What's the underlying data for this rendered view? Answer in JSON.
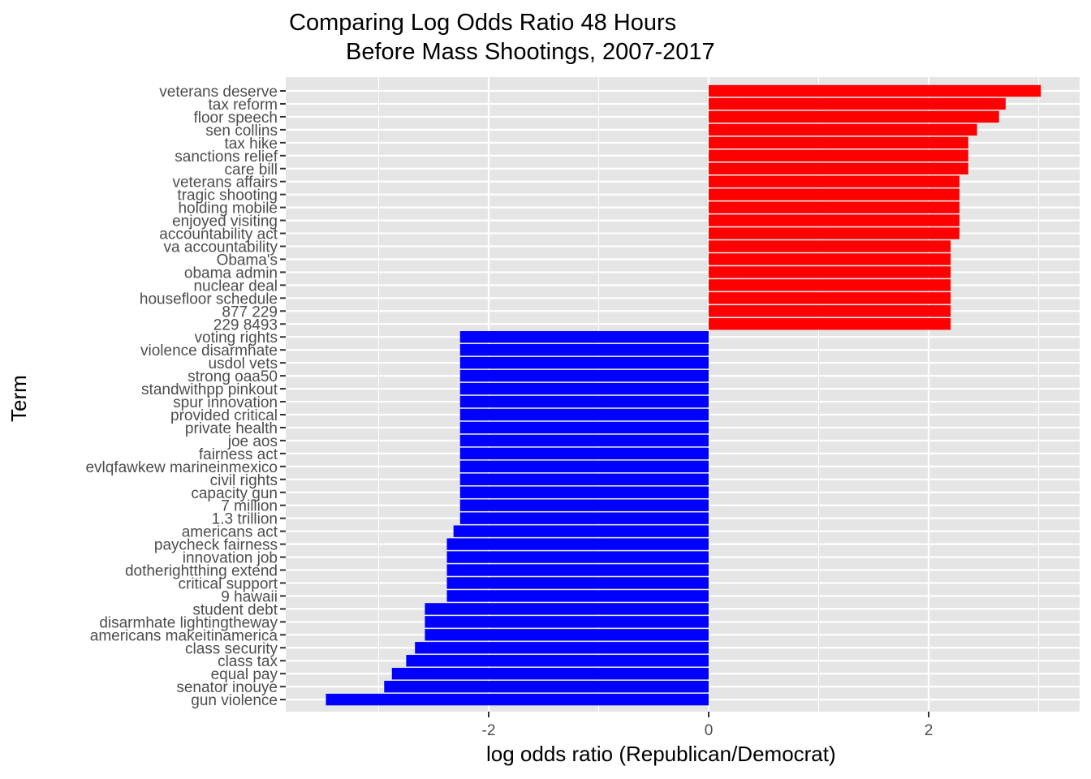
{
  "chart_data": {
    "type": "bar",
    "orientation": "horizontal",
    "title_lines": [
      "Comparing Log Odds Ratio 48 Hours",
      "Before Mass Shootings, 2007-2017"
    ],
    "xlabel": "log odds ratio (Republican/Democrat)",
    "ylabel": "Term",
    "xlim": [
      -3.5,
      3.3
    ],
    "xticks": [
      -2,
      0,
      2
    ],
    "xtick_labels": [
      "-2",
      "0",
      "2"
    ],
    "grid": true,
    "colors": {
      "positive": "#ff0000",
      "negative": "#0000ff",
      "panel": "#e5e5e5",
      "grid": "#ffffff"
    },
    "categories": [
      "veterans deserve",
      "tax reform",
      "floor speech",
      "sen collins",
      "tax hike",
      "sanctions relief",
      "care bill",
      "veterans affairs",
      "tragic shooting",
      "holding mobile",
      "enjoyed visiting",
      "accountability act",
      "va accountability",
      "Obama's",
      "obama admin",
      "nuclear deal",
      "housefloor schedule",
      "877 229",
      "229 8493",
      "voting rights",
      "violence disarmhate",
      "usdol vets",
      "strong oaa50",
      "standwithpp pinkout",
      "spur innovation",
      "provided critical",
      "private health",
      "joe aos",
      "fairness act",
      "evlqfawkew marineinmexico",
      "civil rights",
      "capacity gun",
      "7 million",
      "1.3 trillion",
      "americans act",
      "paycheck fairness",
      "innovation job",
      "dotherightthing extend",
      "critical support",
      "9 hawaii",
      "student debt",
      "disarmhate lightingtheway",
      "americans makeitinamerica",
      "class security",
      "class tax",
      "equal pay",
      "senator inouye",
      "gun violence"
    ],
    "values": [
      3.02,
      2.7,
      2.64,
      2.44,
      2.36,
      2.36,
      2.36,
      2.28,
      2.28,
      2.28,
      2.28,
      2.28,
      2.2,
      2.2,
      2.2,
      2.2,
      2.2,
      2.2,
      2.2,
      -2.26,
      -2.26,
      -2.26,
      -2.26,
      -2.26,
      -2.26,
      -2.26,
      -2.26,
      -2.26,
      -2.26,
      -2.26,
      -2.26,
      -2.26,
      -2.26,
      -2.26,
      -2.32,
      -2.38,
      -2.38,
      -2.38,
      -2.38,
      -2.38,
      -2.58,
      -2.58,
      -2.58,
      -2.67,
      -2.75,
      -2.88,
      -2.95,
      -3.48
    ]
  }
}
